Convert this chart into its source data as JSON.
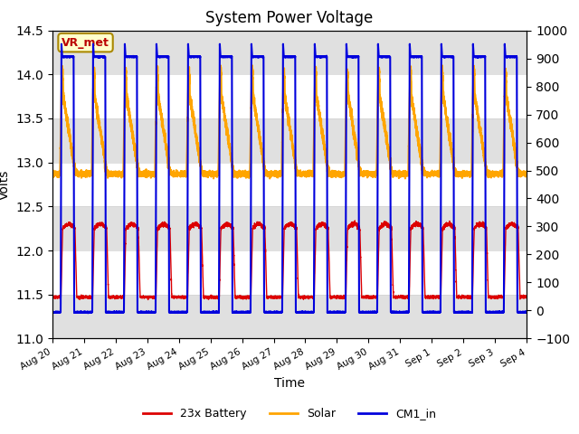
{
  "title": "System Power Voltage",
  "ylabel_left": "Volts",
  "xlabel": "Time",
  "ylim_left": [
    11.0,
    14.5
  ],
  "ylim_right": [
    -100,
    1000
  ],
  "yticks_left": [
    11.0,
    11.5,
    12.0,
    12.5,
    13.0,
    13.5,
    14.0,
    14.5
  ],
  "yticks_right": [
    -100,
    0,
    100,
    200,
    300,
    400,
    500,
    600,
    700,
    800,
    900,
    1000
  ],
  "xtick_labels": [
    "Aug 20",
    "Aug 21",
    "Aug 22",
    "Aug 23",
    "Aug 24",
    "Aug 25",
    "Aug 26",
    "Aug 27",
    "Aug 28",
    "Aug 29",
    "Aug 30",
    "Aug 31",
    "Sep 1",
    "Sep 2",
    "Sep 3",
    "Sep 4"
  ],
  "annotation_text": "VR_met",
  "annotation_color": "#bb0000",
  "annotation_bg": "#ffffcc",
  "annotation_edge": "#aa8800",
  "line_colors": {
    "battery": "#dd0000",
    "solar": "#ffa500",
    "cm1": "#0000dd"
  },
  "line_widths": {
    "battery": 1.0,
    "solar": 1.5,
    "cm1": 1.5
  },
  "legend_labels": [
    "23x Battery",
    "Solar",
    "CM1_in"
  ],
  "bg_band_color": "#e0e0e0",
  "n_days": 15,
  "ppd": 480
}
